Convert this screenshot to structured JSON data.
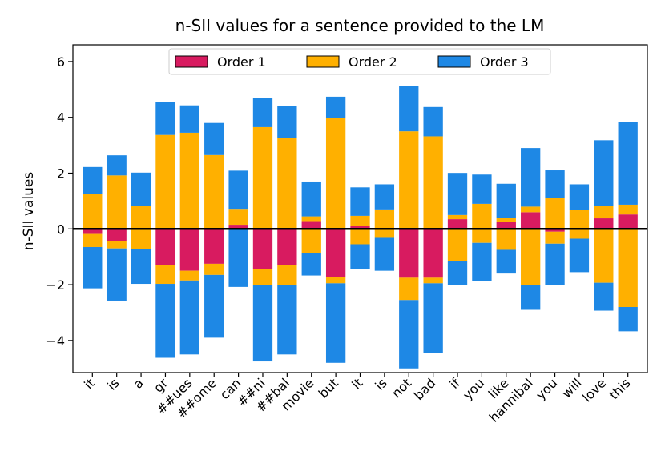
{
  "chart_data": {
    "type": "bar",
    "stacked": "diverging",
    "title": "n-SII values for a sentence provided to the LM",
    "xlabel": "",
    "ylabel": "n-SII values",
    "ylim": [
      -5.15,
      6.6
    ],
    "yticks": [
      -4,
      -2,
      0,
      2,
      4,
      6
    ],
    "grid": false,
    "legend_position": "top-center",
    "categories": [
      "it",
      "is",
      "a",
      "gr",
      "##ues",
      "##ome",
      "can",
      "##ni",
      "##bal",
      "movie",
      "but",
      "it",
      "is",
      "not",
      "bad",
      "if",
      "you",
      "like",
      "hannibal",
      "you",
      "will",
      "love",
      "this"
    ],
    "series": [
      {
        "name": "Order 1",
        "color": "#d81b60",
        "pos": [
          0,
          0,
          0,
          0,
          0,
          0,
          0.15,
          0,
          0,
          0.28,
          0,
          0.12,
          0,
          0,
          0,
          0.35,
          0,
          0.25,
          0.6,
          0,
          0,
          0.38,
          0.52
        ],
        "neg": [
          -0.18,
          -0.45,
          0,
          -1.3,
          -1.5,
          -1.25,
          0,
          -1.45,
          -1.3,
          0,
          -1.72,
          0,
          0,
          -1.75,
          -1.75,
          0,
          0,
          0,
          0,
          -0.1,
          0,
          0,
          0
        ]
      },
      {
        "name": "Order 2",
        "color": "#ffb000",
        "pos": [
          1.25,
          1.92,
          0.82,
          3.37,
          3.45,
          2.65,
          0.57,
          3.65,
          3.25,
          0.17,
          3.97,
          0.35,
          0.7,
          3.5,
          3.32,
          0.15,
          0.9,
          0.15,
          0.2,
          1.1,
          0.67,
          0.45,
          0.35
        ],
        "neg": [
          -0.47,
          -0.25,
          -0.72,
          -0.67,
          -0.35,
          -0.4,
          0,
          -0.55,
          -0.7,
          -0.87,
          -0.23,
          -0.55,
          -0.32,
          -0.8,
          -0.2,
          -1.15,
          -0.5,
          -0.75,
          -2.0,
          -0.43,
          -0.35,
          -1.93,
          -2.8
        ]
      },
      {
        "name": "Order 3",
        "color": "#1e88e5",
        "pos": [
          0.97,
          0.72,
          1.2,
          1.18,
          0.98,
          1.15,
          1.37,
          1.03,
          1.15,
          1.25,
          0.77,
          1.02,
          0.9,
          1.62,
          1.05,
          1.51,
          1.05,
          1.22,
          2.1,
          1.0,
          0.93,
          2.35,
          2.97
        ],
        "neg": [
          -1.48,
          -1.87,
          -1.25,
          -2.65,
          -2.65,
          -2.25,
          -2.08,
          -2.75,
          -2.5,
          -0.8,
          -2.85,
          -0.88,
          -1.18,
          -2.45,
          -2.5,
          -0.85,
          -1.37,
          -0.85,
          -0.9,
          -1.47,
          -1.2,
          -1.0,
          -0.87
        ]
      }
    ]
  }
}
